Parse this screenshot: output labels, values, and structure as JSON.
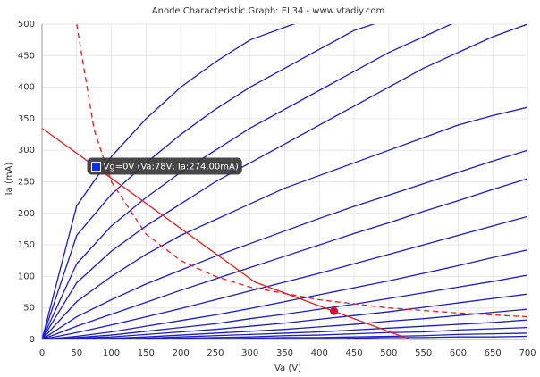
{
  "chart_data": {
    "type": "line",
    "title": "Anode Characteristic Graph: EL34 - www.vtadiy.com",
    "x_label": "Va (V)",
    "y_label": "Ia (mA)",
    "x": [
      0,
      50,
      100,
      150,
      200,
      250,
      300,
      350,
      400,
      450,
      500,
      550,
      600,
      650,
      700
    ],
    "series": [
      {
        "color": "#1c1cc8",
        "values": [
          0,
          212,
          290,
          350,
          400,
          440,
          475,
          495,
          515,
          null,
          null,
          null,
          null,
          null,
          null
        ]
      },
      {
        "color": "#1c1cc8",
        "values": [
          0,
          165,
          230,
          280,
          325,
          365,
          400,
          430,
          460,
          490,
          508,
          null,
          null,
          null,
          null
        ]
      },
      {
        "color": "#1c1cc8",
        "values": [
          0,
          120,
          180,
          225,
          265,
          300,
          335,
          365,
          395,
          425,
          455,
          480,
          505,
          null,
          null
        ]
      },
      {
        "color": "#1c1cc8",
        "values": [
          0,
          90,
          140,
          180,
          215,
          250,
          280,
          310,
          340,
          370,
          400,
          430,
          455,
          480,
          500
        ]
      },
      {
        "color": "#1c1cc8",
        "values": [
          0,
          60,
          100,
          135,
          165,
          190,
          215,
          240,
          260,
          280,
          300,
          320,
          340,
          355,
          368
        ]
      },
      {
        "color": "#1c1cc8",
        "values": [
          0,
          36,
          63,
          88,
          110,
          132,
          152,
          172,
          192,
          211,
          229,
          247,
          265,
          283,
          300
        ]
      },
      {
        "color": "#1c1cc8",
        "values": [
          0,
          21,
          40,
          59,
          78,
          96,
          114,
          132,
          150,
          168,
          185,
          203,
          220,
          238,
          255
        ]
      },
      {
        "color": "#1c1cc8",
        "values": [
          0,
          11,
          23,
          36,
          49,
          63,
          77,
          91,
          105,
          120,
          135,
          150,
          165,
          180,
          195
        ]
      },
      {
        "color": "#1c1cc8",
        "values": [
          0,
          5,
          12,
          21,
          30,
          39,
          49,
          60,
          71,
          82,
          93,
          105,
          117,
          130,
          142
        ]
      },
      {
        "color": "#1c1cc8",
        "values": [
          0,
          3,
          7,
          13,
          19,
          25,
          33,
          40,
          48,
          56,
          65,
          74,
          83,
          92,
          102
        ]
      },
      {
        "color": "#1c1cc8",
        "values": [
          0,
          2,
          4,
          8,
          12,
          16,
          21,
          26,
          32,
          38,
          44,
          51,
          58,
          65,
          72
        ]
      },
      {
        "color": "#1c1cc8",
        "values": [
          0,
          1,
          2,
          4,
          7,
          10,
          13,
          16,
          20,
          24,
          29,
          33,
          38,
          43,
          48
        ]
      },
      {
        "color": "#1c1cc8",
        "values": [
          0,
          0,
          1,
          2,
          4,
          6,
          8,
          10,
          12,
          15,
          18,
          21,
          24,
          27,
          31
        ]
      },
      {
        "color": "#1c1cc8",
        "values": [
          0,
          0,
          1,
          1,
          2,
          3,
          4,
          6,
          7,
          9,
          11,
          12,
          15,
          17,
          19
        ]
      },
      {
        "color": "#1c1cc8",
        "values": [
          0,
          0,
          0,
          1,
          1,
          1,
          2,
          3,
          3,
          4,
          5,
          6,
          8,
          9,
          10
        ]
      },
      {
        "color": "#1c1cc8",
        "values": [
          0,
          0,
          0,
          0,
          0,
          1,
          1,
          1,
          1,
          2,
          3,
          3,
          4,
          4,
          5
        ]
      }
    ],
    "load_line": {
      "color": "#e81c1c",
      "x": [
        0,
        307,
        531
      ],
      "values": [
        335,
        91,
        0
      ]
    },
    "power_curve": {
      "color": "#e81c1c",
      "dashed": true,
      "x": [
        50,
        75,
        100,
        150,
        200,
        250,
        300,
        400,
        500,
        600,
        700
      ],
      "values": [
        500,
        333,
        250,
        167,
        125,
        100,
        83,
        63,
        50,
        42,
        36
      ]
    },
    "operating_point": {
      "color": "#d0103a",
      "x": 421,
      "y": 45
    },
    "annotation": {
      "text": "Vg=0V (Va:78V, Ia:274.00mA)",
      "x": 78,
      "y": 274,
      "color": "#0a2cff"
    },
    "xlim": [
      0,
      700
    ],
    "ylim": [
      0,
      500
    ],
    "xticks": [
      0,
      50,
      100,
      150,
      200,
      250,
      300,
      350,
      400,
      450,
      500,
      550,
      600,
      650,
      700
    ],
    "yticks": [
      0,
      50,
      100,
      150,
      200,
      250,
      300,
      350,
      400,
      450,
      500
    ],
    "grid": true
  }
}
